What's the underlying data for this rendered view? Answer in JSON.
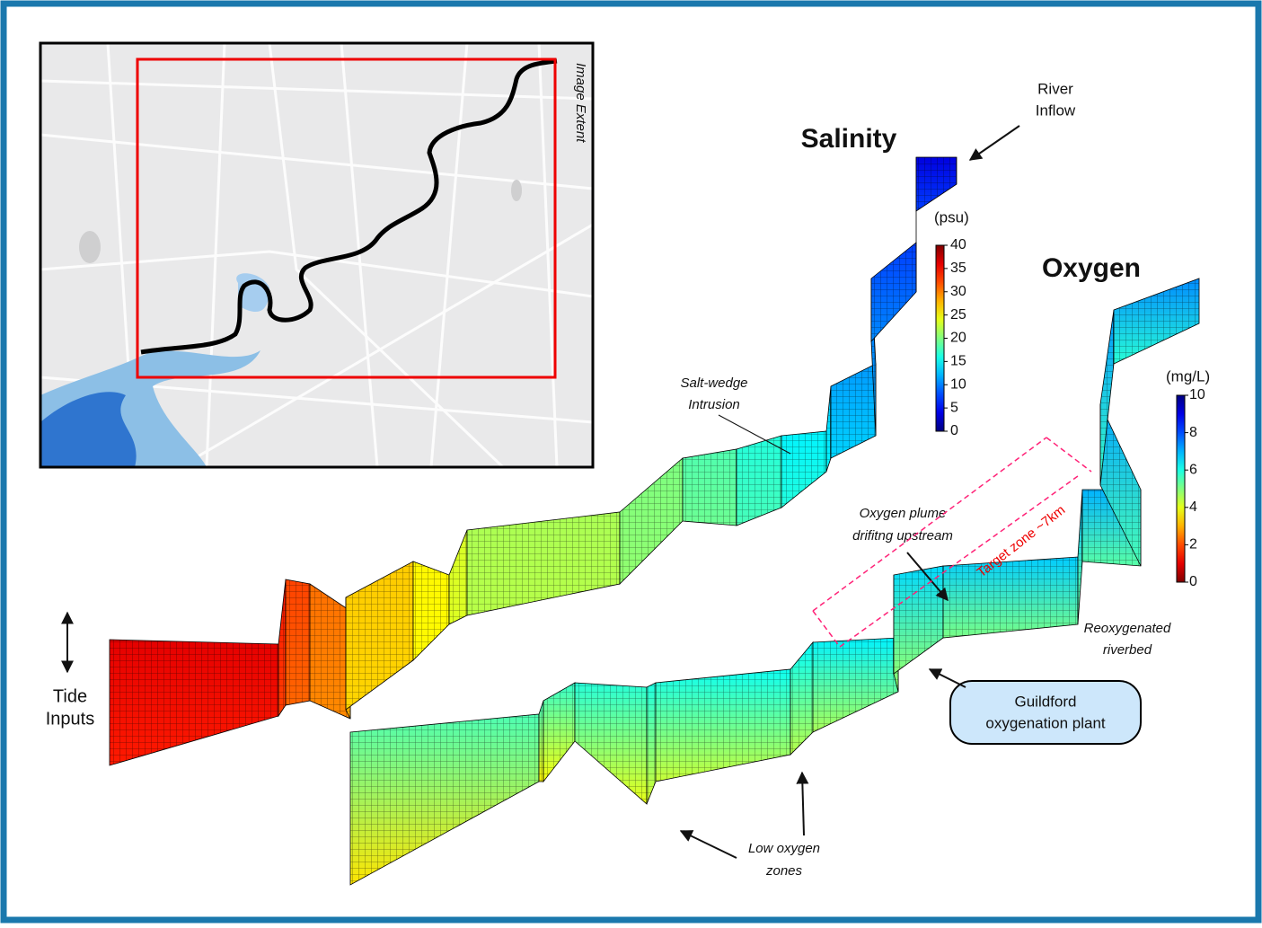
{
  "map": {
    "label": "Image Extent"
  },
  "salinity": {
    "title": "Salinity",
    "unit": "(psu)",
    "ticks": [
      "40",
      "35",
      "30",
      "25",
      "20",
      "15",
      "10",
      "5",
      "0"
    ]
  },
  "oxygen": {
    "title": "Oxygen",
    "unit": "(mg/L)",
    "ticks": [
      "10",
      "8",
      "6",
      "4",
      "2",
      "0"
    ]
  },
  "annotations": {
    "river_inflow": [
      "River",
      "Inflow"
    ],
    "salt_wedge": [
      "Salt-wedge",
      "Intrusion"
    ],
    "oxygen_plume": [
      "Oxygen plume",
      "drifitng upstream"
    ],
    "target_zone": "Target zone ~7km",
    "reoxygenated": [
      "Reoxygenated",
      "riverbed"
    ],
    "plant": [
      "Guildford",
      "oxygenation plant"
    ],
    "low_oxygen": [
      "Low oxygen",
      "zones"
    ],
    "tide": [
      "Tide",
      "Inputs"
    ]
  }
}
